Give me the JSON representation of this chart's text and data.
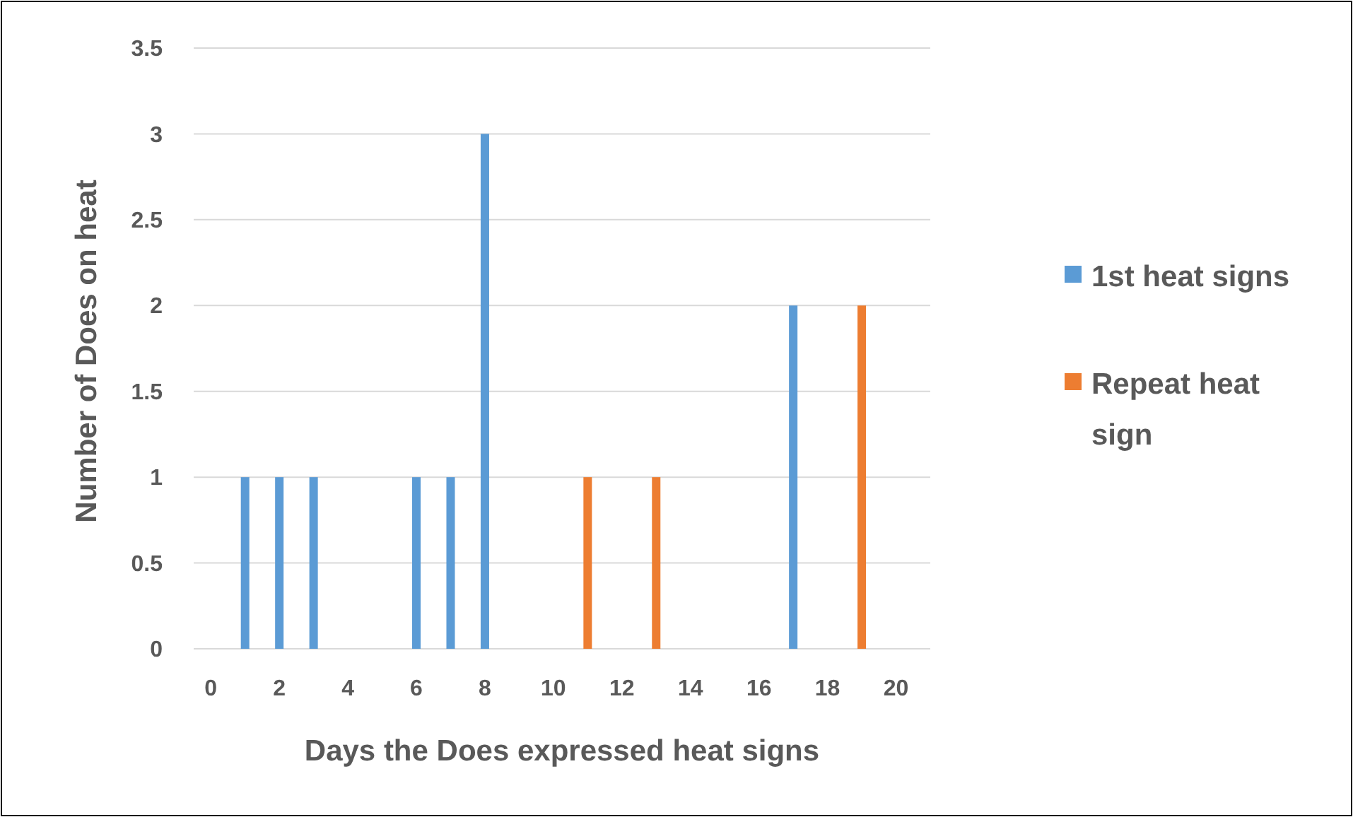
{
  "chart_data": {
    "type": "bar",
    "xlabel": "Days the Does expressed heat signs",
    "ylabel": "Number of Does on heat",
    "x": [
      1,
      2,
      3,
      6,
      7,
      8,
      11,
      13,
      17,
      19
    ],
    "series": [
      {
        "name": "1st heat signs",
        "color": "#5b9bd5",
        "values": [
          1,
          1,
          1,
          1,
          1,
          3,
          null,
          null,
          2,
          null
        ]
      },
      {
        "name": "Repeat heat sign",
        "color": "#ed7d31",
        "values": [
          null,
          null,
          null,
          null,
          null,
          null,
          1,
          1,
          null,
          2
        ]
      }
    ],
    "xlim": [
      -0.5,
      21
    ],
    "xticks": [
      0,
      2,
      4,
      6,
      8,
      10,
      12,
      14,
      16,
      18,
      20
    ],
    "ylim": [
      0,
      3.5
    ],
    "yticks": [
      0,
      0.5,
      1,
      1.5,
      2,
      2.5,
      3,
      3.5
    ],
    "grid": "y",
    "legend": "right"
  }
}
